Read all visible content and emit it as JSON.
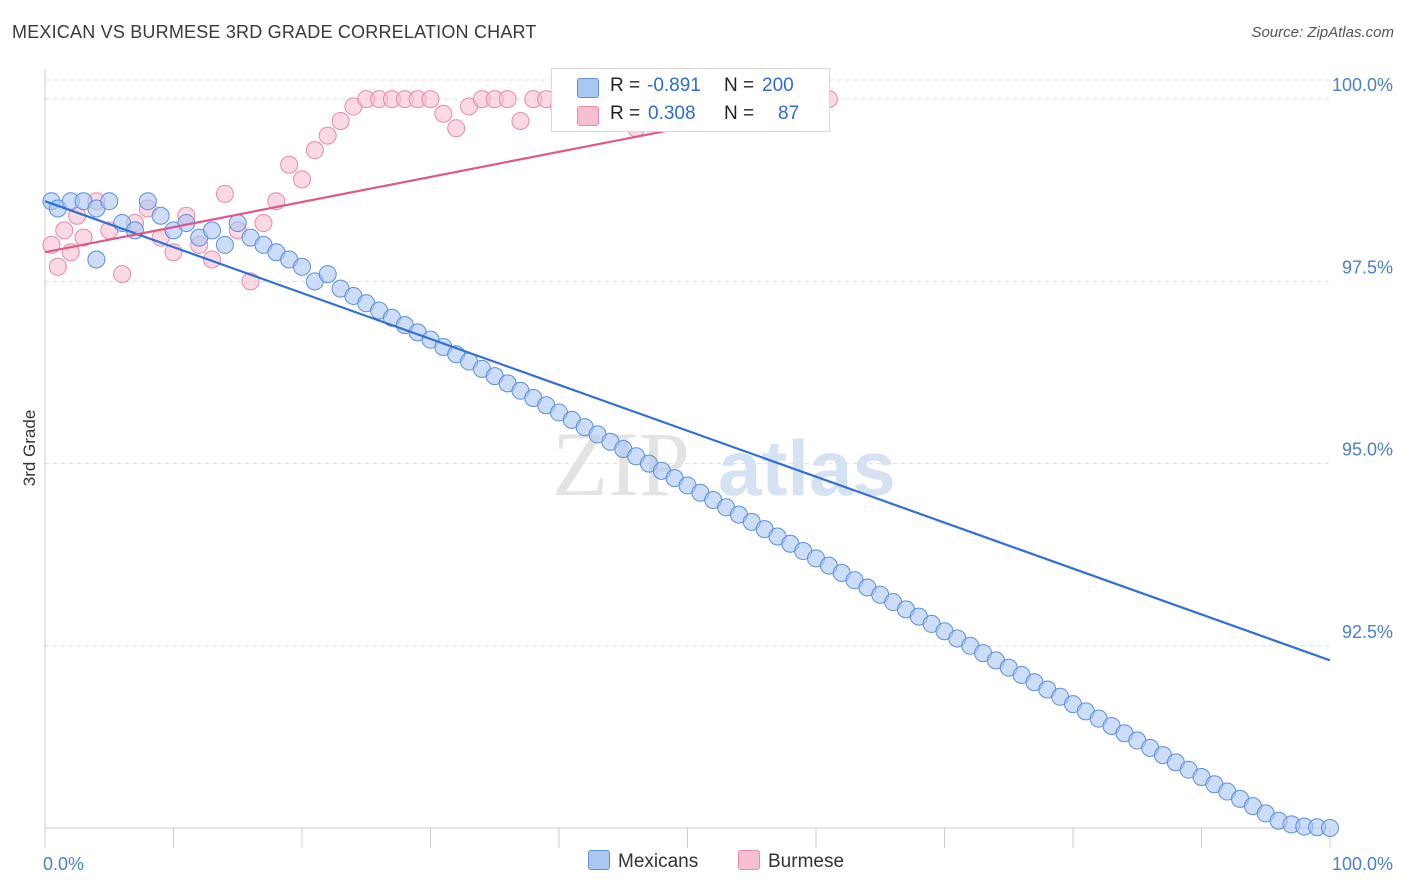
{
  "header": {
    "title": "MEXICAN VS BURMESE 3RD GRADE CORRELATION CHART",
    "source": "Source: ZipAtlas.com"
  },
  "legend_top": {
    "row1": {
      "r_label": "R =",
      "r_value": "-0.891",
      "n_label": "N =",
      "n_value": "200"
    },
    "row2": {
      "r_label": "R =",
      "r_value": "0.308",
      "n_label": "N =",
      "n_value": "87"
    }
  },
  "legend_bottom": {
    "series1": "Mexicans",
    "series2": "Burmese"
  },
  "watermark": {
    "part1": "ZIP",
    "part2": "atlas"
  },
  "colors": {
    "blue_fill": "#a9c7f2",
    "blue_stroke": "#5b8fdc",
    "blue_line": "#2f6fd6",
    "pink_fill": "#f6bfd1",
    "pink_stroke": "#e889a9",
    "pink_line": "#e0578a",
    "tick_text": "#4a7fcf",
    "grid": "#dddddd"
  },
  "chart_data": {
    "type": "scatter",
    "title": "MEXICAN VS BURMESE 3RD GRADE CORRELATION CHART",
    "xlabel": "",
    "ylabel": "3rd Grade",
    "xlim": [
      0,
      100
    ],
    "ylim": [
      90.0,
      100.4
    ],
    "x_tick_labels": [
      "0.0%",
      "100.0%"
    ],
    "y_ticks": [
      92.5,
      95.0,
      97.5,
      100.0
    ],
    "y_tick_labels": [
      "92.5%",
      "95.0%",
      "97.5%",
      "100.0%"
    ],
    "grid": "horizontal dashed",
    "series": [
      {
        "name": "Mexicans",
        "color": "#a9c7f2",
        "trend": {
          "x": [
            0,
            100
          ],
          "y": [
            98.6,
            92.3
          ]
        },
        "points": [
          [
            0.5,
            98.6
          ],
          [
            1,
            98.5
          ],
          [
            2,
            98.6
          ],
          [
            3,
            98.6
          ],
          [
            4,
            98.5
          ],
          [
            5,
            98.6
          ],
          [
            4,
            97.8
          ],
          [
            6,
            98.3
          ],
          [
            7,
            98.2
          ],
          [
            8,
            98.6
          ],
          [
            9,
            98.4
          ],
          [
            10,
            98.2
          ],
          [
            11,
            98.3
          ],
          [
            12,
            98.1
          ],
          [
            13,
            98.2
          ],
          [
            14,
            98
          ],
          [
            15,
            98.3
          ],
          [
            16,
            98.1
          ],
          [
            17,
            98
          ],
          [
            18,
            97.9
          ],
          [
            19,
            97.8
          ],
          [
            20,
            97.7
          ],
          [
            21,
            97.5
          ],
          [
            22,
            97.6
          ],
          [
            23,
            97.4
          ],
          [
            24,
            97.3
          ],
          [
            25,
            97.2
          ],
          [
            26,
            97.1
          ],
          [
            27,
            97
          ],
          [
            28,
            96.9
          ],
          [
            29,
            96.8
          ],
          [
            30,
            96.7
          ],
          [
            31,
            96.6
          ],
          [
            32,
            96.5
          ],
          [
            33,
            96.4
          ],
          [
            34,
            96.3
          ],
          [
            35,
            96.2
          ],
          [
            36,
            96.1
          ],
          [
            37,
            96
          ],
          [
            38,
            95.9
          ],
          [
            39,
            95.8
          ],
          [
            40,
            95.7
          ],
          [
            41,
            95.6
          ],
          [
            42,
            95.5
          ],
          [
            43,
            95.4
          ],
          [
            44,
            95.3
          ],
          [
            45,
            95.2
          ],
          [
            46,
            95.1
          ],
          [
            47,
            95
          ],
          [
            48,
            94.9
          ],
          [
            49,
            94.8
          ],
          [
            50,
            94.7
          ],
          [
            51,
            94.6
          ],
          [
            52,
            94.5
          ],
          [
            53,
            94.4
          ],
          [
            54,
            94.3
          ],
          [
            55,
            94.2
          ],
          [
            56,
            94.1
          ],
          [
            57,
            94
          ],
          [
            58,
            93.9
          ],
          [
            59,
            93.8
          ],
          [
            60,
            93.7
          ],
          [
            61,
            93.6
          ],
          [
            62,
            93.5
          ],
          [
            63,
            93.4
          ],
          [
            64,
            93.3
          ],
          [
            65,
            93.2
          ],
          [
            66,
            93.1
          ],
          [
            67,
            93
          ],
          [
            68,
            92.9
          ],
          [
            69,
            92.8
          ],
          [
            70,
            92.7
          ],
          [
            71,
            92.6
          ],
          [
            72,
            92.5
          ],
          [
            73,
            92.4
          ],
          [
            74,
            92.3
          ],
          [
            75,
            92.2
          ],
          [
            76,
            92.1
          ],
          [
            77,
            92
          ],
          [
            78,
            91.9
          ],
          [
            79,
            91.8
          ],
          [
            80,
            91.7
          ],
          [
            81,
            91.6
          ],
          [
            82,
            91.5
          ],
          [
            83,
            91.4
          ],
          [
            84,
            91.3
          ],
          [
            85,
            91.2
          ],
          [
            86,
            91.1
          ],
          [
            87,
            91
          ],
          [
            88,
            90.9
          ],
          [
            89,
            90.8
          ],
          [
            90,
            90.7
          ],
          [
            91,
            90.6
          ],
          [
            92,
            90.5
          ],
          [
            93,
            90.4
          ],
          [
            94,
            90.3
          ],
          [
            95,
            90.2
          ],
          [
            96,
            90.1
          ],
          [
            97,
            90.05
          ],
          [
            98,
            90.02
          ],
          [
            99,
            90.01
          ],
          [
            100,
            90.0
          ]
        ]
      },
      {
        "name": "Burmese",
        "color": "#f6bfd1",
        "trend": {
          "x": [
            0,
            61
          ],
          "y": [
            97.9,
            100.0
          ]
        },
        "points": [
          [
            0.5,
            98
          ],
          [
            1,
            97.7
          ],
          [
            1.5,
            98.2
          ],
          [
            2,
            97.9
          ],
          [
            2.5,
            98.4
          ],
          [
            3,
            98.1
          ],
          [
            4,
            98.6
          ],
          [
            5,
            98.2
          ],
          [
            6,
            97.6
          ],
          [
            7,
            98.3
          ],
          [
            8,
            98.5
          ],
          [
            9,
            98.1
          ],
          [
            10,
            97.9
          ],
          [
            11,
            98.4
          ],
          [
            12,
            98
          ],
          [
            13,
            97.8
          ],
          [
            14,
            98.7
          ],
          [
            15,
            98.2
          ],
          [
            16,
            97.5
          ],
          [
            17,
            98.3
          ],
          [
            18,
            98.6
          ],
          [
            19,
            99.1
          ],
          [
            20,
            98.9
          ],
          [
            21,
            99.3
          ],
          [
            22,
            99.5
          ],
          [
            23,
            99.7
          ],
          [
            24,
            99.9
          ],
          [
            25,
            100
          ],
          [
            26,
            100
          ],
          [
            27,
            100
          ],
          [
            28,
            100
          ],
          [
            29,
            100
          ],
          [
            30,
            100
          ],
          [
            31,
            99.8
          ],
          [
            32,
            99.6
          ],
          [
            33,
            99.9
          ],
          [
            34,
            100
          ],
          [
            35,
            100
          ],
          [
            36,
            100
          ],
          [
            37,
            99.7
          ],
          [
            38,
            100
          ],
          [
            39,
            100
          ],
          [
            40,
            99.9
          ],
          [
            41,
            100
          ],
          [
            42,
            100
          ],
          [
            43,
            100
          ],
          [
            44,
            99.8
          ],
          [
            45,
            100
          ],
          [
            46,
            99.6
          ],
          [
            47,
            100
          ],
          [
            48,
            100
          ],
          [
            49,
            99.9
          ],
          [
            50,
            100
          ],
          [
            51,
            100
          ],
          [
            52,
            99.7
          ],
          [
            53,
            100
          ],
          [
            54,
            100
          ],
          [
            55,
            99.9
          ],
          [
            56,
            100
          ],
          [
            57,
            100
          ],
          [
            58,
            99.8
          ],
          [
            59,
            100
          ],
          [
            60,
            100
          ],
          [
            61,
            100
          ]
        ]
      }
    ]
  }
}
